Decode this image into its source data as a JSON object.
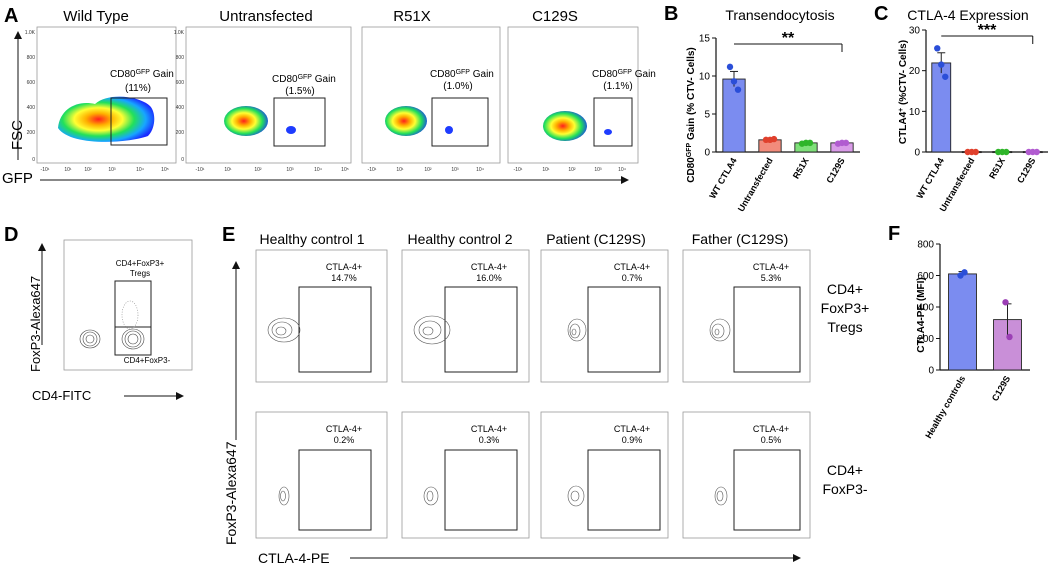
{
  "panelA": {
    "letter": "A",
    "yLabel": "FSC",
    "xLabel": "GFP",
    "subplots": [
      {
        "title": "Wild Type",
        "gateLabel": "CD80",
        "gateSup": "GFP",
        "gateWord": " Gain",
        "gatePct": "(11%)"
      },
      {
        "title": "Untransfected",
        "gateLabel": "CD80",
        "gateSup": "GFP",
        "gateWord": " Gain",
        "gatePct": "(1.5%)"
      },
      {
        "title": "R51X",
        "gateLabel": "CD80",
        "gateSup": "GFP",
        "gateWord": " Gain",
        "gatePct": "(1.0%)"
      },
      {
        "title": "C129S",
        "gateLabel": "CD80",
        "gateSup": "GFP",
        "gateWord": " Gain",
        "gatePct": "(1.1%)"
      }
    ],
    "yTicks": [
      "1.0K",
      "800",
      "600",
      "400",
      "200",
      "0"
    ],
    "xTicks": [
      "-10¹",
      "0",
      "10¹",
      "10²",
      "10³",
      "10⁴",
      "10⁵"
    ]
  },
  "panelD": {
    "letter": "D",
    "yLabel": "FoxP3-Alexa647",
    "xLabel": "CD4-FITC",
    "gateTop": "CD4+FoxP3+",
    "gateTop2": "Tregs",
    "gateBottom": "CD4+FoxP3-"
  },
  "panelE": {
    "letter": "E",
    "yLabel": "FoxP3-Alexa647",
    "xLabel": "CTLA-4-PE",
    "columns": [
      "Healthy control 1",
      "Healthy control 2",
      "Patient (C129S)",
      "Father (C129S)"
    ],
    "gateName": "CTLA-4+",
    "topRow": [
      "14.7%",
      "16.0%",
      "0.7%",
      "5.3%"
    ],
    "bottomRow": [
      "0.2%",
      "0.3%",
      "0.9%",
      "0.5%"
    ],
    "rowLabelTop": [
      "CD4+",
      "FoxP3+",
      "Tregs"
    ],
    "rowLabelBottom": [
      "CD4+",
      "FoxP3-"
    ]
  },
  "chart_data": [
    {
      "panel": "B",
      "type": "bar",
      "title": "Transendocytosis",
      "ylabel": "CD80GFP Gain (% CTV- Cells)",
      "ylabelMain": "CD80",
      "ylabelSup": "GFP",
      "ylabelRest": " Gain (% CTV- Cells)",
      "categories": [
        "WT CTLA4",
        "Untransfected",
        "R51X",
        "C129S"
      ],
      "values": [
        9.6,
        1.6,
        1.2,
        1.2
      ],
      "errors": [
        1.0,
        0.1,
        0.1,
        0.1
      ],
      "points": [
        [
          11.2,
          9.3,
          8.2
        ],
        [
          1.6,
          1.6,
          1.7
        ],
        [
          1.1,
          1.2,
          1.2
        ],
        [
          1.1,
          1.2,
          1.2
        ]
      ],
      "colors": [
        "#7b8cf0",
        "#f28b7b",
        "#7fe07a",
        "#d99be8"
      ],
      "pointColors": [
        "#2a4ed8",
        "#e0402c",
        "#2fb52a",
        "#b15bd0"
      ],
      "ylim": [
        0,
        15
      ],
      "yticks": [
        0,
        5,
        10,
        15
      ],
      "significance": "**"
    },
    {
      "panel": "C",
      "type": "bar",
      "title": "CTLA-4 Expression",
      "ylabel": "CTLA4+ (%CTV- Cells)",
      "ylabelMain": "CTLA4",
      "ylabelSup": "+",
      "ylabelRest": " (%CTV- Cells)",
      "categories": [
        "WT CTLA4",
        "Untransfected",
        "R51X",
        "C129S"
      ],
      "values": [
        21.9,
        0.1,
        0.1,
        0.1
      ],
      "errors": [
        2.5,
        0,
        0,
        0
      ],
      "points": [
        [
          25.5,
          21.5,
          18.5
        ],
        [
          0,
          0,
          0
        ],
        [
          0,
          0,
          0
        ],
        [
          0,
          0,
          0
        ]
      ],
      "colors": [
        "#7b8cf0",
        "#f28b7b",
        "#7fe07a",
        "#d99be8"
      ],
      "pointColors": [
        "#2a4ed8",
        "#e0402c",
        "#2fb52a",
        "#b15bd0"
      ],
      "ylim": [
        0,
        30
      ],
      "yticks": [
        0,
        10,
        20,
        30
      ],
      "significance": "***"
    },
    {
      "panel": "F",
      "type": "bar",
      "title": "",
      "ylabel": "CTLA4-PE (MFI)",
      "categories": [
        "Healthy controls",
        "C129S"
      ],
      "values": [
        610,
        320
      ],
      "errors": [
        15,
        100
      ],
      "points": [
        [
          600,
          620
        ],
        [
          430,
          210
        ]
      ],
      "colors": [
        "#7b8cf0",
        "#c98fd8"
      ],
      "pointColors": [
        "#2a4ed8",
        "#9b3fb5"
      ],
      "ylim": [
        0,
        800
      ],
      "yticks": [
        0,
        200,
        400,
        600,
        800
      ],
      "significance": ""
    }
  ]
}
